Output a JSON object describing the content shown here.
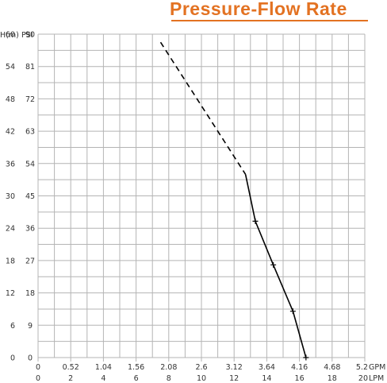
{
  "title": "Pressure-Flow Rate",
  "colors": {
    "title": "#e37222",
    "grid": "#b4b4b4",
    "curve": "#000000",
    "text": "#333333"
  },
  "chart_data": {
    "type": "line",
    "title": "Pressure-Flow Rate",
    "y_axes": [
      {
        "label": "H(m)",
        "range": [
          0,
          60
        ],
        "ticks": [
          "0",
          "6",
          "12",
          "18",
          "24",
          "30",
          "36",
          "42",
          "48",
          "54",
          "60"
        ]
      },
      {
        "label": "PSI",
        "range": [
          0,
          90
        ],
        "ticks": [
          "0",
          "9",
          "18",
          "27",
          "36",
          "45",
          "54",
          "63",
          "72",
          "81",
          "90"
        ]
      }
    ],
    "x_axes": [
      {
        "label": "GPM",
        "range": [
          0,
          5.2
        ],
        "ticks": [
          "0",
          "0.52",
          "1.04",
          "1.56",
          "2.08",
          "2.6",
          "3.12",
          "3.64",
          "4.16",
          "4.68",
          "5.2"
        ]
      },
      {
        "label": "LPM",
        "range": [
          0,
          20
        ],
        "ticks": [
          "0",
          "2",
          "4",
          "6",
          "8",
          "10",
          "12",
          "14",
          "16",
          "18",
          "20"
        ]
      }
    ],
    "grid": true,
    "series": [
      {
        "style": "dashed",
        "x_lpm": [
          7.5,
          12.7
        ],
        "y_m": [
          58.5,
          34
        ]
      },
      {
        "style": "solid",
        "markers": true,
        "x_lpm": [
          12.7,
          13.3,
          14.4,
          15.6,
          16.4
        ],
        "y_m": [
          34,
          25.3,
          17.2,
          8.6,
          0
        ]
      }
    ]
  }
}
